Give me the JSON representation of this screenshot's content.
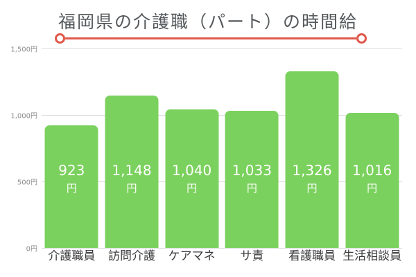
{
  "chart_data": {
    "type": "bar",
    "title": "福岡県の介護職（パート）の時間給",
    "categories": [
      "介護職員",
      "訪問介護",
      "ケアマネ",
      "サ責",
      "看護職員",
      "生活相談員"
    ],
    "values": [
      923,
      1148,
      1040,
      1033,
      1326,
      1016
    ],
    "value_labels": [
      "923",
      "1,148",
      "1,040",
      "1,033",
      "1,326",
      "1,016"
    ],
    "unit_label": "円",
    "xlabel": "",
    "ylabel": "",
    "ylim": [
      0,
      1500
    ],
    "yticks": [
      0,
      500,
      1000,
      1500
    ],
    "ytick_labels": [
      "0円",
      "500円",
      "1,000円",
      "1,500円"
    ],
    "grid": true,
    "legend": false
  },
  "colors": {
    "background": "#ffffff",
    "bar": "#7bd15e",
    "value_label": "#ffffff",
    "accent": "#e0584b",
    "title": "#54585b",
    "category_label": "#3b3b3b",
    "tick_label": "#8c8c8c",
    "gridline": "#dcdcdc"
  }
}
